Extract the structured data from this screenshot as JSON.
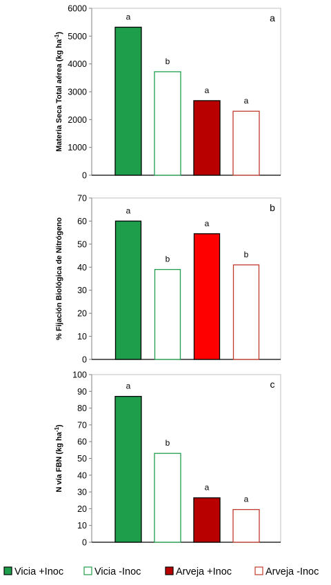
{
  "chart_data": [
    {
      "type": "bar",
      "panel_label": "a",
      "ylabel": "Materia Seca Total aérea (kg ha",
      "ylabel_sup": "-1",
      "ylabel_close": ")",
      "ylim": [
        0,
        6000
      ],
      "yticks": [
        0,
        1000,
        2000,
        3000,
        4000,
        5000,
        6000
      ],
      "categories": [
        "Vicia +Inoc",
        "Vicia -Inoc",
        "Arveja +Inoc",
        "Arveja -Inoc"
      ],
      "values": [
        5320,
        3720,
        2680,
        2300
      ],
      "letters": [
        "a",
        "b",
        "a",
        "a"
      ],
      "fills": [
        "#1e9e4a",
        "#ffffff",
        "#b80000",
        "#ffffff"
      ],
      "strokes": [
        "#000000",
        "#1e9e4a",
        "#000000",
        "#c0392b"
      ],
      "grid": false
    },
    {
      "type": "bar",
      "panel_label": "b",
      "ylabel": "% Fijación Biológica de Nitrógeno",
      "ylabel_sup": "",
      "ylabel_close": "",
      "ylim": [
        0,
        70
      ],
      "yticks": [
        0,
        10,
        20,
        30,
        40,
        50,
        60,
        70
      ],
      "categories": [
        "Vicia +Inoc",
        "Vicia -Inoc",
        "Arveja +Inoc",
        "Arveja -Inoc"
      ],
      "values": [
        60,
        39,
        54.5,
        41
      ],
      "letters": [
        "a",
        "b",
        "a",
        "b"
      ],
      "fills": [
        "#1e9e4a",
        "#ffffff",
        "#ff0000",
        "#ffffff"
      ],
      "strokes": [
        "#000000",
        "#1e9e4a",
        "#000000",
        "#c0392b"
      ],
      "grid": false
    },
    {
      "type": "bar",
      "panel_label": "c",
      "ylabel": "N vía FBN (kg ha",
      "ylabel_sup": "-1",
      "ylabel_close": ")",
      "ylim": [
        0,
        100
      ],
      "yticks": [
        0,
        10,
        20,
        30,
        40,
        50,
        60,
        70,
        80,
        90,
        100
      ],
      "categories": [
        "Vicia +Inoc",
        "Vicia -Inoc",
        "Arveja +Inoc",
        "Arveja -Inoc"
      ],
      "values": [
        87,
        53,
        26.5,
        19.5
      ],
      "letters": [
        "a",
        "b",
        "a",
        "a"
      ],
      "fills": [
        "#1e9e4a",
        "#ffffff",
        "#b80000",
        "#ffffff"
      ],
      "strokes": [
        "#000000",
        "#1e9e4a",
        "#000000",
        "#c0392b"
      ],
      "grid": false
    }
  ],
  "legend": {
    "placement": "bottom",
    "items": [
      {
        "label": "Vicia +Inoc",
        "fill": "#1e9e4a",
        "stroke": "#000000"
      },
      {
        "label": "Vicia -Inoc",
        "fill": "#ffffff",
        "stroke": "#1e9e4a"
      },
      {
        "label": "Arveja +Inoc",
        "fill": "#b80000",
        "stroke": "#000000"
      },
      {
        "label": "Arveja -Inoc",
        "fill": "#ffffff",
        "stroke": "#c0392b"
      }
    ]
  }
}
